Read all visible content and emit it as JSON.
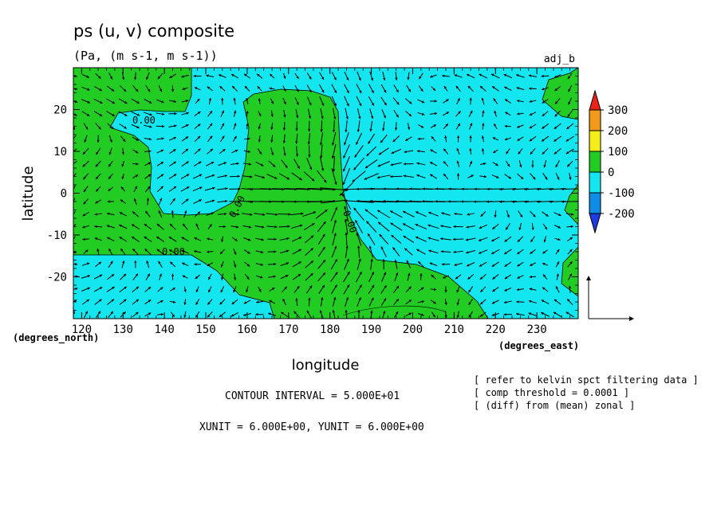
{
  "chart_data": {
    "type": "heatmap",
    "title": "ps (u, v) composite",
    "subtitle": "(Pa, (m s-1, m s-1))",
    "label_right": "adj_b",
    "xlabel": "longitude",
    "ylabel": "latitude",
    "x_unit_label": "(degrees_east)",
    "y_unit_label": "(degrees_north)",
    "xlim": [
      118,
      240
    ],
    "ylim": [
      -30,
      30
    ],
    "x_ticks": [
      120,
      130,
      140,
      150,
      160,
      170,
      180,
      190,
      200,
      210,
      220,
      230
    ],
    "y_ticks": [
      -20,
      -10,
      0,
      10,
      20
    ],
    "contour_labels": [
      "0.00",
      "0.00",
      "0.00",
      "0.00"
    ],
    "colorbar": {
      "levels": [
        300,
        200,
        100,
        0,
        -100,
        -200
      ],
      "colors": [
        "#e8241b",
        "#f39a1c",
        "#f3ee1a",
        "#22cc22",
        "#14e6f0",
        "#0f8ce6",
        "#1f3be0"
      ]
    },
    "fill_colors": {
      "positive": "#22cc22",
      "negative": "#14e6f0"
    },
    "notes": [
      "[ refer to kelvin spct filtering data ]",
      "[ comp threshold = 0.0001 ]",
      "[ (diff) from (mean) zonal ]"
    ],
    "contour_interval": "CONTOUR INTERVAL = 5.000E+01",
    "unit_vectors": "XUNIT = 6.000E+00, YUNIT = 6.000E+00"
  }
}
